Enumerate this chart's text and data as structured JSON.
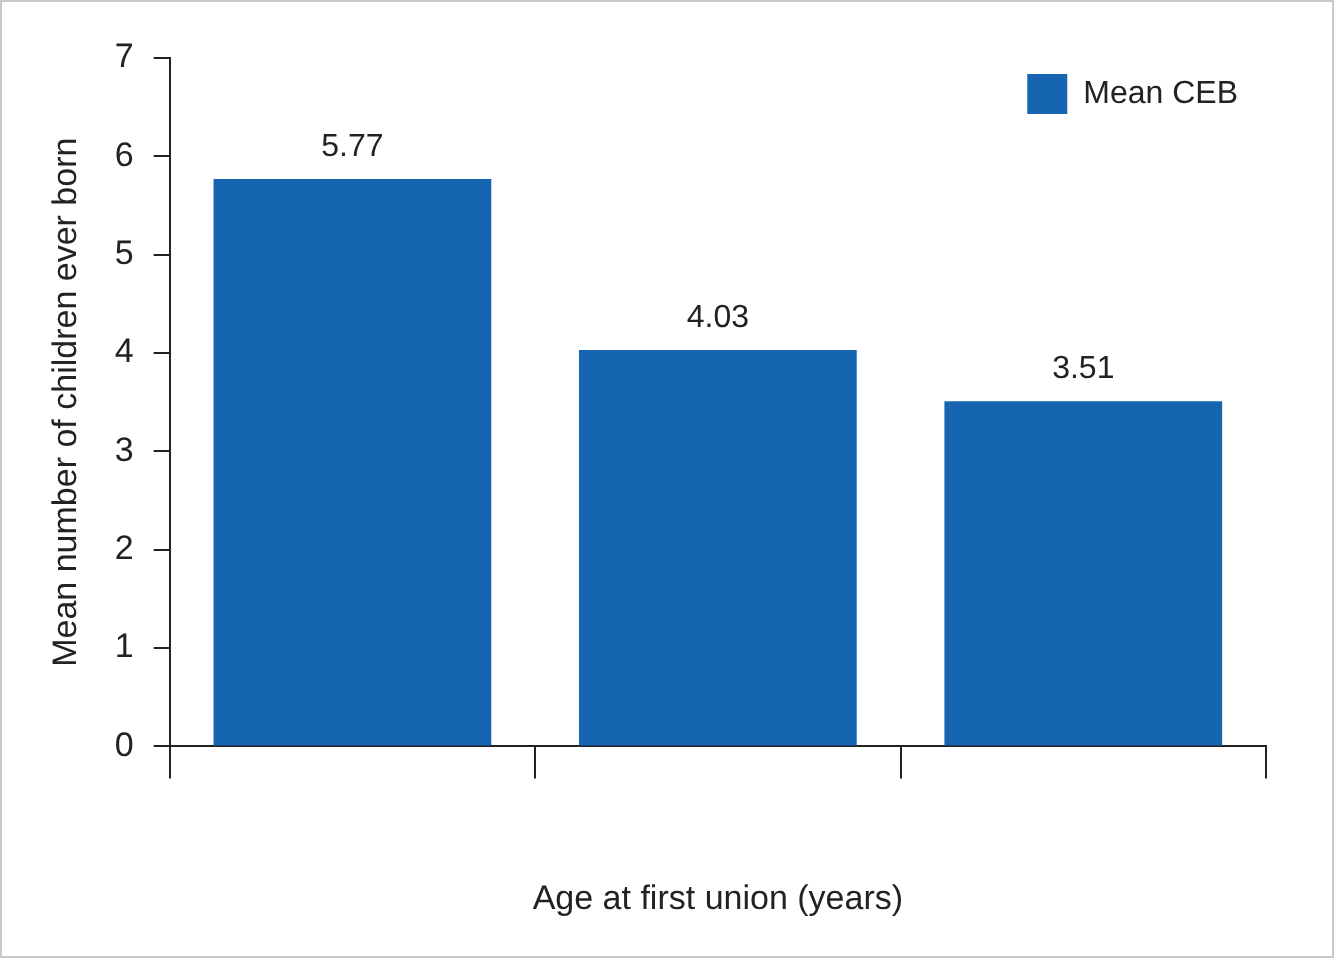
{
  "chart_data": {
    "type": "bar",
    "categories": [
      null,
      null,
      null
    ],
    "series": [
      {
        "name": "Mean CEB",
        "color": "#1565b0",
        "values": [
          5.77,
          4.03,
          3.51
        ]
      }
    ],
    "ylim": [
      0,
      7
    ],
    "yticks": [
      0,
      1,
      2,
      3,
      4,
      5,
      6,
      7
    ],
    "ylabel": "Mean number of children ever born",
    "xlabel": "Age at first union (years)",
    "data_labels": true,
    "grid": false,
    "legend": "top right"
  }
}
